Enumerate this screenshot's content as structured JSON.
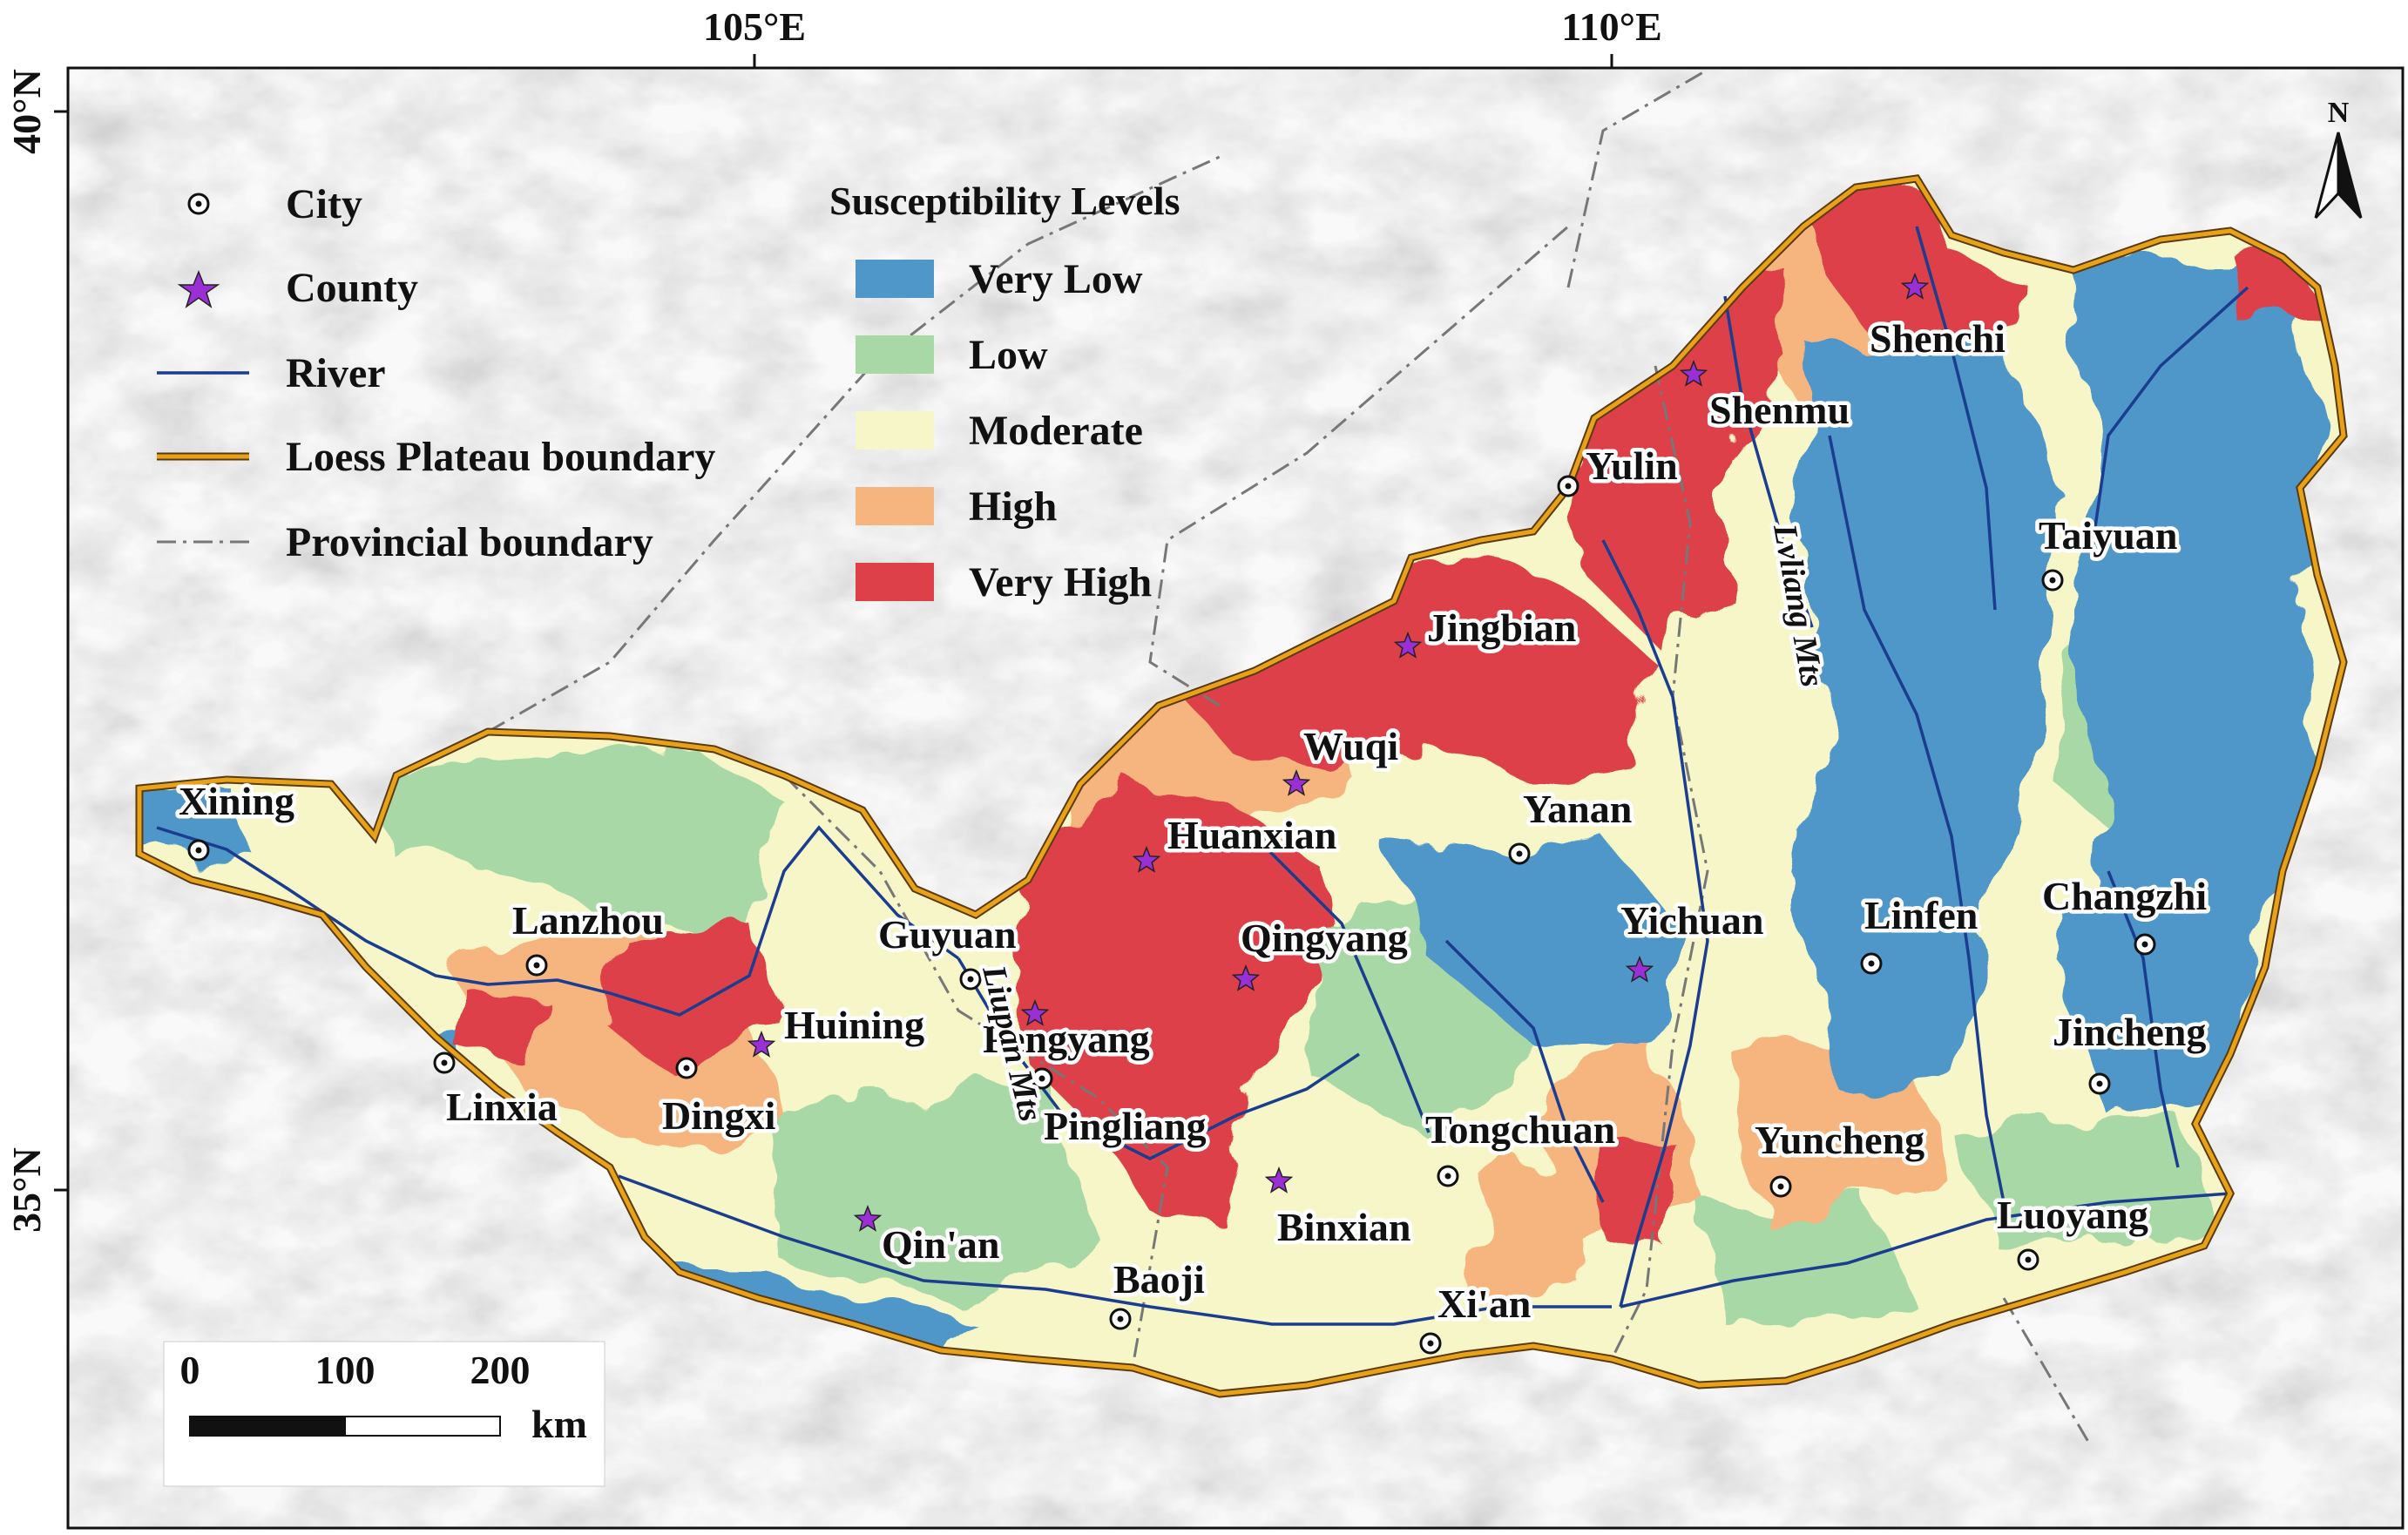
{
  "axes": {
    "lon_labels": [
      "105°E",
      "110°E"
    ],
    "lat_labels": [
      "40°N",
      "35°N"
    ]
  },
  "north_arrow": {
    "label": "N"
  },
  "legend_symbols": [
    {
      "label": "City",
      "symbol": "city-marker-icon"
    },
    {
      "label": "County",
      "symbol": "county-star-icon"
    },
    {
      "label": "River",
      "symbol": "river-line-icon"
    },
    {
      "label": "Loess Plateau boundary",
      "symbol": "plateau-boundary-line-icon"
    },
    {
      "label": "Provincial boundary",
      "symbol": "provincial-boundary-line-icon"
    }
  ],
  "susceptibility_legend": {
    "title": "Susceptibility Levels",
    "levels": [
      {
        "label": "Very Low",
        "color": "#4f97c9"
      },
      {
        "label": "Low",
        "color": "#a8d8a5"
      },
      {
        "label": "Moderate",
        "color": "#f6f6c8"
      },
      {
        "label": "High",
        "color": "#f6b47f"
      },
      {
        "label": "Very High",
        "color": "#dd4048"
      }
    ]
  },
  "scale_bar": {
    "ticks": [
      "0",
      "100",
      "200"
    ],
    "unit": "km"
  },
  "cities": [
    "Xining",
    "Lanzhou",
    "Linxia",
    "Dingxi",
    "Guyuan",
    "Pingliang",
    "Baoji",
    "Xi'an",
    "Tongchuan",
    "Yanan",
    "Yulin",
    "Taiyuan",
    "Linfen",
    "Changzhi",
    "Jincheng",
    "Yuncheng",
    "Luoyang"
  ],
  "counties": [
    "Huining",
    "Qin'an",
    "Pengyang",
    "Huanxian",
    "Qingyang",
    "Wuqi",
    "Jingbian",
    "Binxian",
    "Yichuan",
    "Shenmu",
    "Shenchi"
  ],
  "mountains": [
    "Liupan Mts",
    "Lvliang Mts"
  ],
  "colors": {
    "river": "#1a3d8f",
    "plateau_boundary": "#e8a21a",
    "provincial_boundary": "#777777",
    "county_star": "#9b2fd6"
  }
}
